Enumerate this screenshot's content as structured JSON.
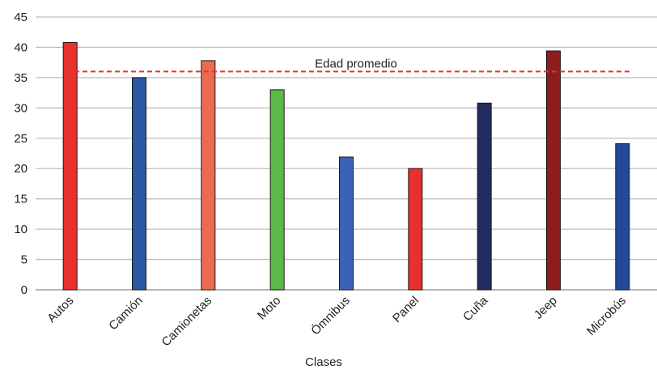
{
  "chart_data": {
    "type": "bar",
    "title": "",
    "xlabel": "Clases",
    "ylabel": "",
    "categories": [
      "Autos",
      "Camión",
      "Camionetas",
      "Moto",
      "Ómnibus",
      "Panel",
      "Cuña",
      "Jeep",
      "Microbús"
    ],
    "values": [
      40.8,
      35.0,
      37.8,
      33.0,
      21.9,
      20.0,
      30.8,
      39.4,
      24.1
    ],
    "colors": [
      "#e8302e",
      "#2a58a4",
      "#ec6a50",
      "#5ab947",
      "#3a63b8",
      "#e8302e",
      "#232c5e",
      "#8e1c1c",
      "#22489a"
    ],
    "ylim": [
      0,
      45
    ],
    "yticks": [
      0,
      5,
      10,
      15,
      20,
      25,
      30,
      35,
      40,
      45
    ],
    "grid": true,
    "reference_line": {
      "label": "Edad promedio",
      "value": 36,
      "color": "#e8302e",
      "style": "dashed"
    }
  }
}
